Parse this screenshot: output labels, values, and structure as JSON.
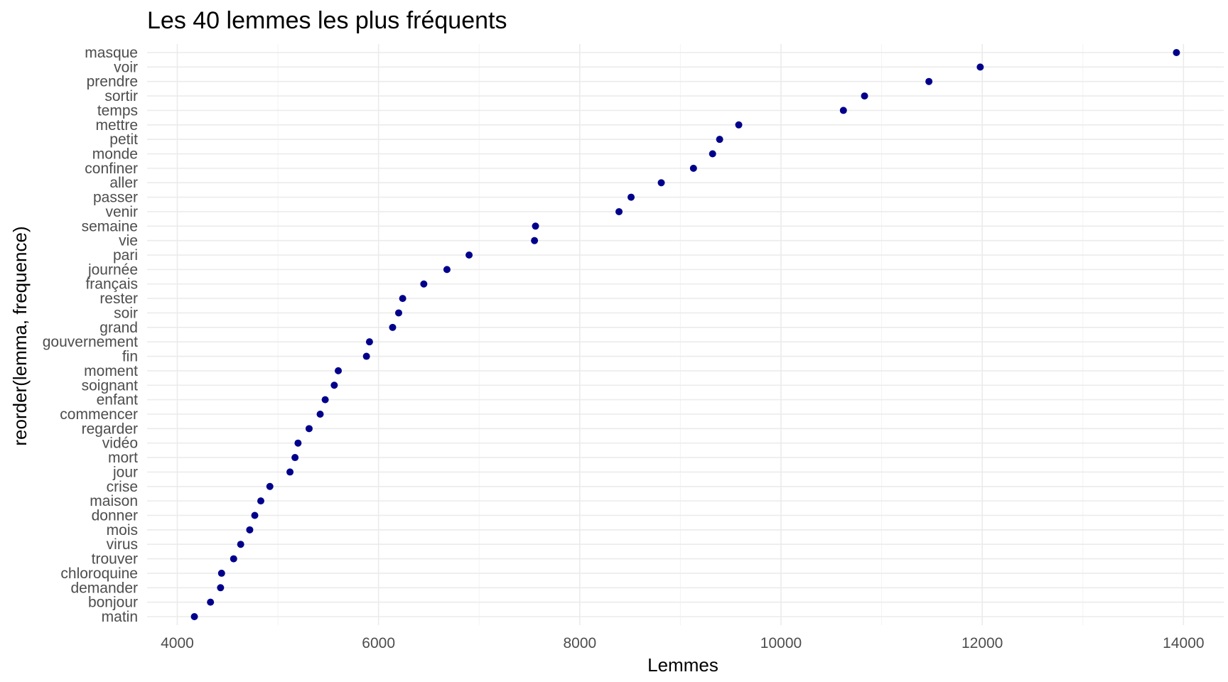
{
  "chart_data": {
    "type": "scatter",
    "title": "Les 40 lemmes les plus fréquents",
    "xlabel": "Lemmes",
    "ylabel": "reorder(lemma, frequence)",
    "xlim": [
      3700,
      14400
    ],
    "xticks": [
      4000,
      6000,
      8000,
      10000,
      12000,
      14000
    ],
    "grid": true,
    "point_color": "#00008b",
    "grid_color": "#ebebeb",
    "categories": [
      "masque",
      "voir",
      "prendre",
      "sortir",
      "temps",
      "mettre",
      "petit",
      "monde",
      "confiner",
      "aller",
      "passer",
      "venir",
      "semaine",
      "vie",
      "pari",
      "journée",
      "français",
      "rester",
      "soir",
      "grand",
      "gouvernement",
      "fin",
      "moment",
      "soignant",
      "enfant",
      "commencer",
      "regarder",
      "vidéo",
      "mort",
      "jour",
      "crise",
      "maison",
      "donner",
      "mois",
      "virus",
      "trouver",
      "chloroquine",
      "demander",
      "bonjour",
      "matin"
    ],
    "values": [
      13930,
      11980,
      11470,
      10830,
      10620,
      9580,
      9390,
      9320,
      9130,
      8810,
      8510,
      8390,
      7560,
      7550,
      6900,
      6680,
      6450,
      6240,
      6200,
      6140,
      5910,
      5880,
      5600,
      5560,
      5470,
      5420,
      5310,
      5200,
      5170,
      5120,
      4920,
      4830,
      4770,
      4720,
      4630,
      4560,
      4440,
      4430,
      4330,
      4170
    ]
  }
}
